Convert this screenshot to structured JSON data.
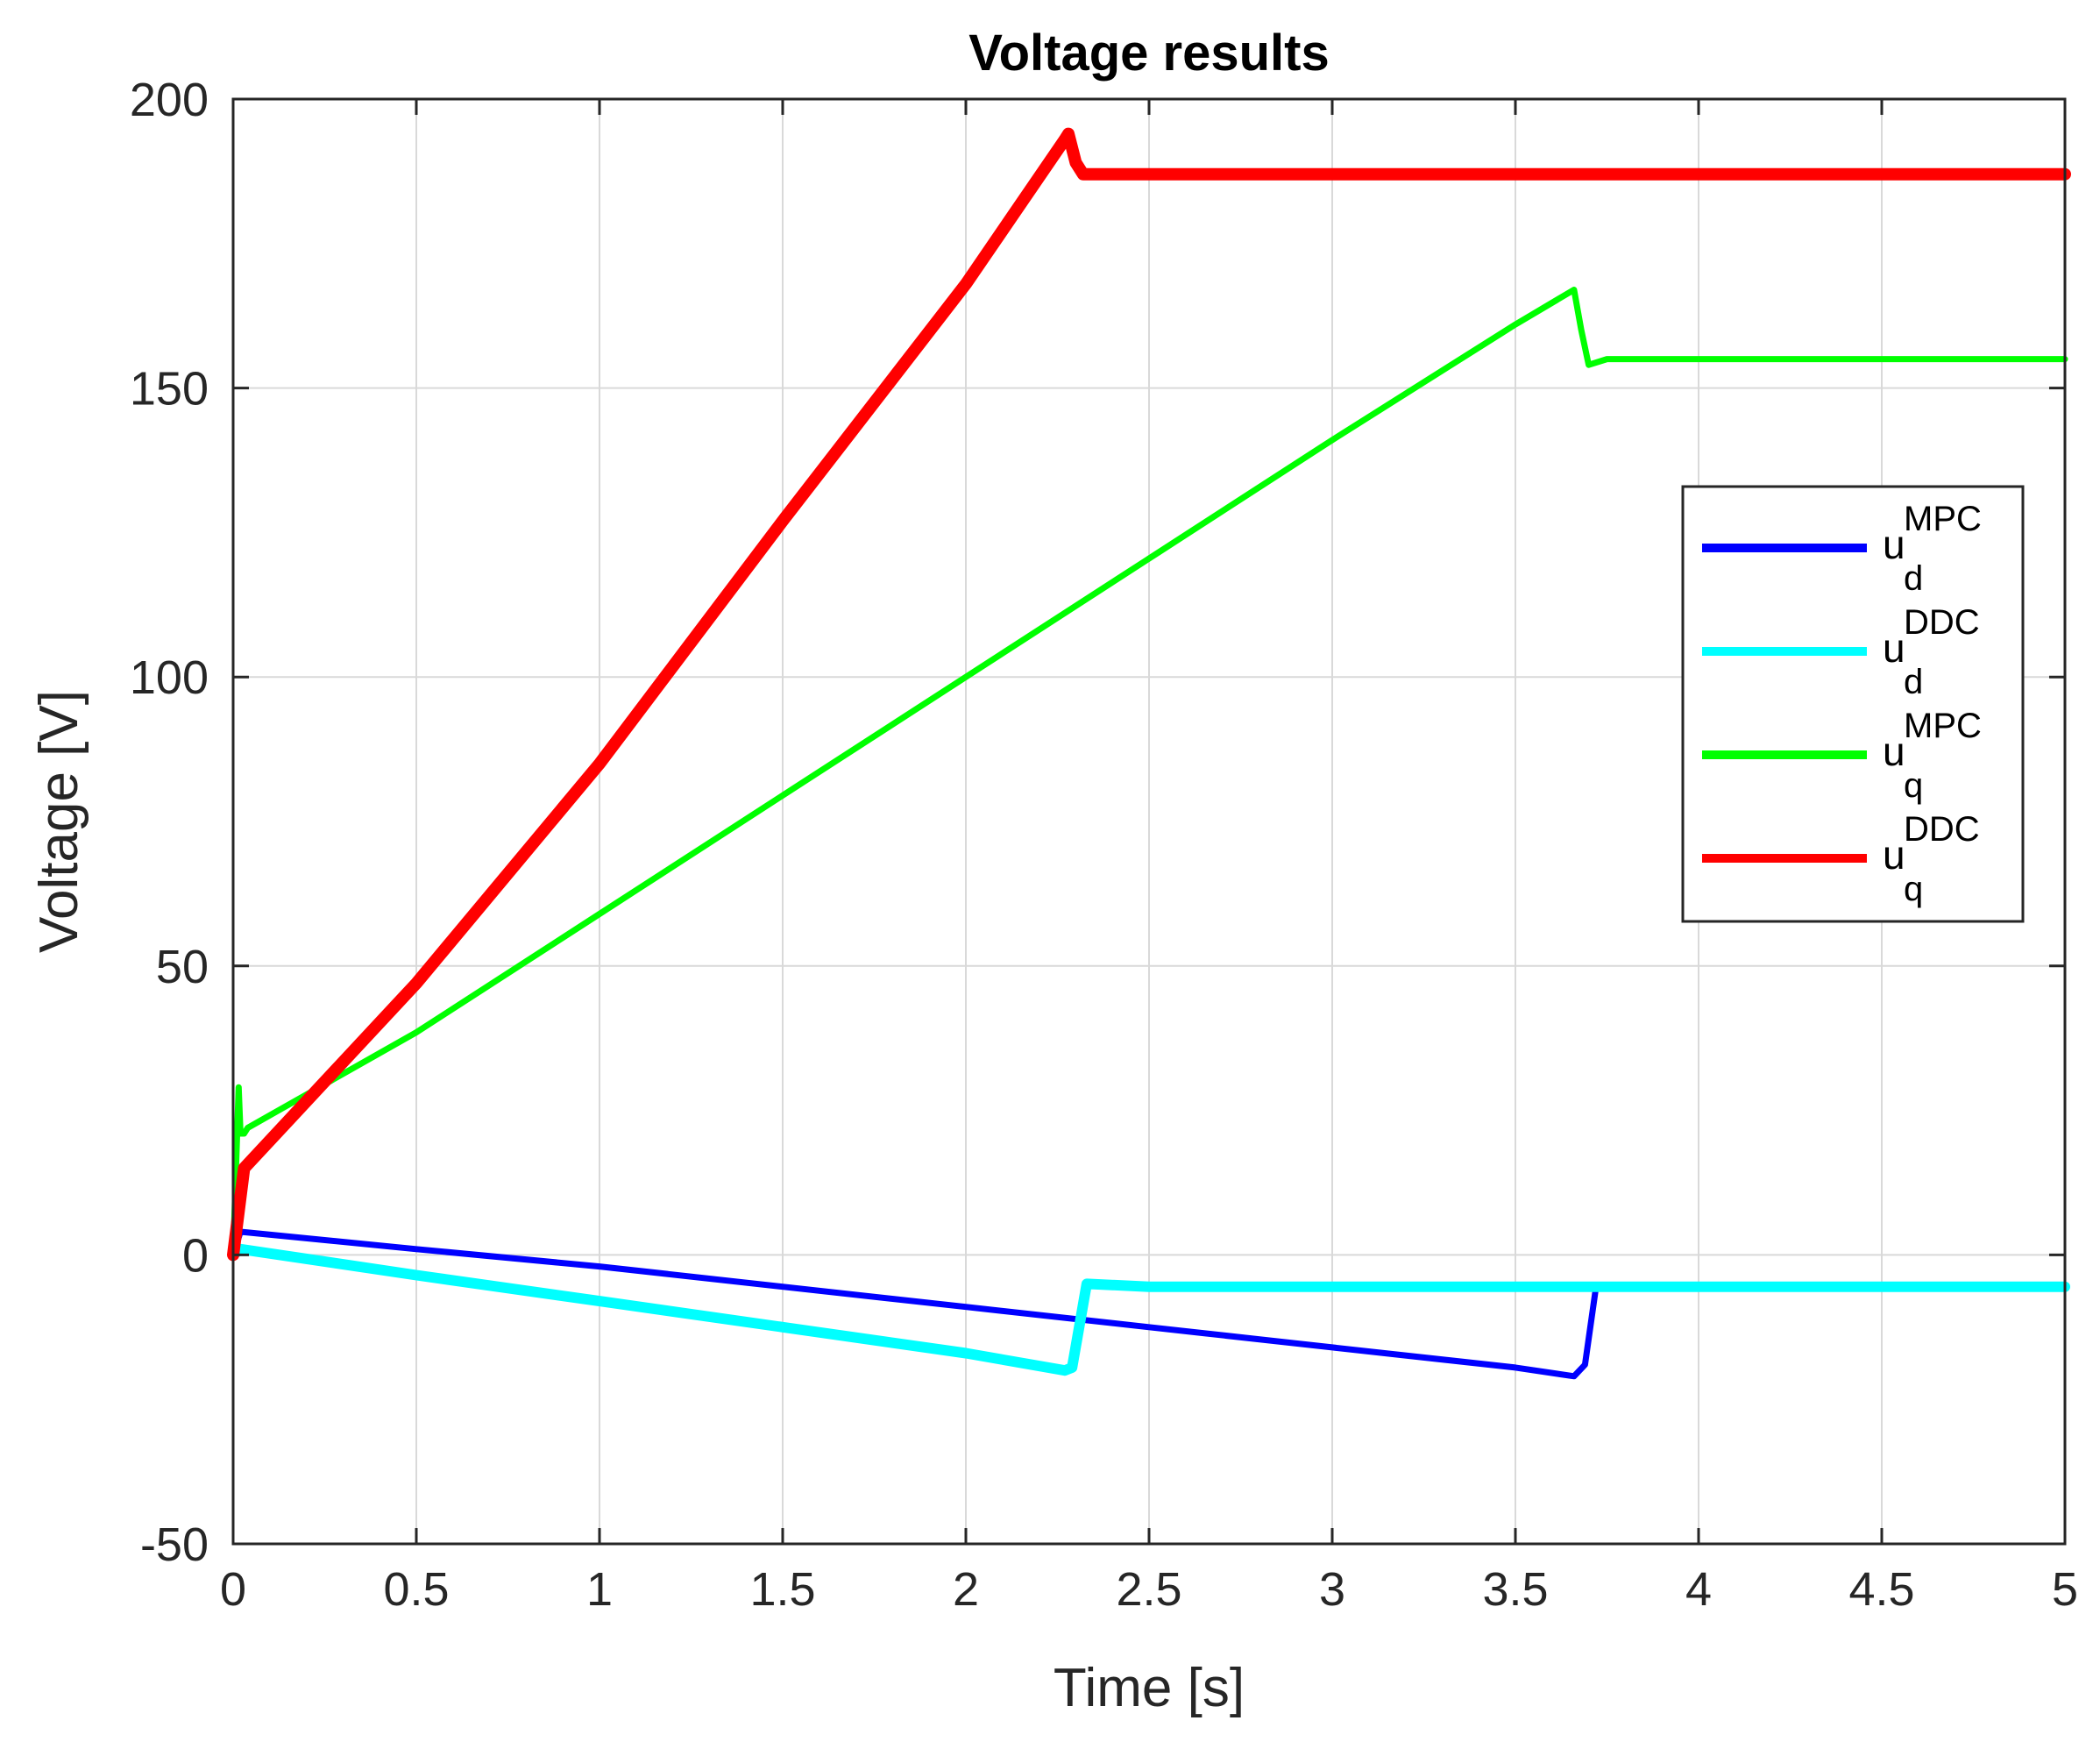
{
  "chart_data": {
    "type": "line",
    "title": "Voltage results",
    "xlabel": "Time [s]",
    "ylabel": "Voltage [V]",
    "xlim": [
      0,
      5
    ],
    "ylim": [
      -50,
      200
    ],
    "xticks": [
      0,
      0.5,
      1,
      1.5,
      2,
      2.5,
      3,
      3.5,
      4,
      4.5,
      5
    ],
    "xtick_labels": [
      "0",
      "0.5",
      "1",
      "1.5",
      "2",
      "2.5",
      "3",
      "3.5",
      "4",
      "4.5",
      "5"
    ],
    "yticks": [
      -50,
      0,
      50,
      100,
      150,
      200
    ],
    "ytick_labels": [
      "-50",
      "0",
      "50",
      "100",
      "150",
      "200"
    ],
    "grid": true,
    "legend_position": "right",
    "series": [
      {
        "name": "u_d^MPC",
        "label_base": "u",
        "label_sub": "d",
        "label_sup": "MPC",
        "color": "#0000ff",
        "x": [
          0,
          0.02,
          0.5,
          1.0,
          1.5,
          2.0,
          2.5,
          3.0,
          3.5,
          3.66,
          3.69,
          3.72,
          4.0,
          4.5,
          5.0
        ],
        "y": [
          0,
          4,
          1,
          -2,
          -5.5,
          -9,
          -12.5,
          -16,
          -19.5,
          -21,
          -19,
          -5.5,
          -5.5,
          -5.5,
          -5.5
        ]
      },
      {
        "name": "u_d^DDC",
        "label_base": "u",
        "label_sub": "d",
        "label_sup": "DDC",
        "color": "#00ffff",
        "x": [
          0,
          0.02,
          0.5,
          1.0,
          1.5,
          2.0,
          2.27,
          2.29,
          2.33,
          2.5,
          3.0,
          3.5,
          4.0,
          4.5,
          5.0
        ],
        "y": [
          0,
          1,
          -3.5,
          -8,
          -12.5,
          -17,
          -20,
          -19.5,
          -5,
          -5.5,
          -5.5,
          -5.5,
          -5.5,
          -5.5,
          -5.5
        ]
      },
      {
        "name": "u_q^MPC",
        "label_base": "u",
        "label_sub": "q",
        "label_sup": "MPC",
        "color": "#00ff00",
        "x": [
          0,
          0.015,
          0.02,
          0.03,
          0.04,
          0.5,
          1.0,
          1.5,
          2.0,
          2.5,
          3.0,
          3.5,
          3.66,
          3.68,
          3.7,
          3.75,
          4.0,
          4.5,
          5.0
        ],
        "y": [
          0,
          29,
          21,
          21,
          22,
          38.5,
          59,
          79.5,
          100,
          120.5,
          141,
          161,
          167,
          160,
          154,
          155,
          155,
          155,
          155
        ]
      },
      {
        "name": "u_q^DDC",
        "label_base": "u",
        "label_sub": "q",
        "label_sup": "DDC",
        "color": "#ff0000",
        "x": [
          0,
          0.03,
          0.5,
          1.0,
          1.5,
          2.0,
          2.27,
          2.28,
          2.3,
          2.32,
          2.5,
          3.0,
          3.5,
          4.0,
          4.5,
          5.0
        ],
        "y": [
          0,
          15,
          47,
          85,
          127,
          168,
          193,
          194,
          189,
          187,
          187,
          187,
          187,
          187,
          187,
          187
        ]
      }
    ]
  },
  "legend_items": [
    {
      "base": "u",
      "sub": "d",
      "sup": "MPC",
      "color": "#0000ff"
    },
    {
      "base": "u",
      "sub": "d",
      "sup": "DDC",
      "color": "#00ffff"
    },
    {
      "base": "u",
      "sub": "q",
      "sup": "MPC",
      "color": "#00ff00"
    },
    {
      "base": "u",
      "sub": "q",
      "sup": "DDC",
      "color": "#ff0000"
    }
  ]
}
